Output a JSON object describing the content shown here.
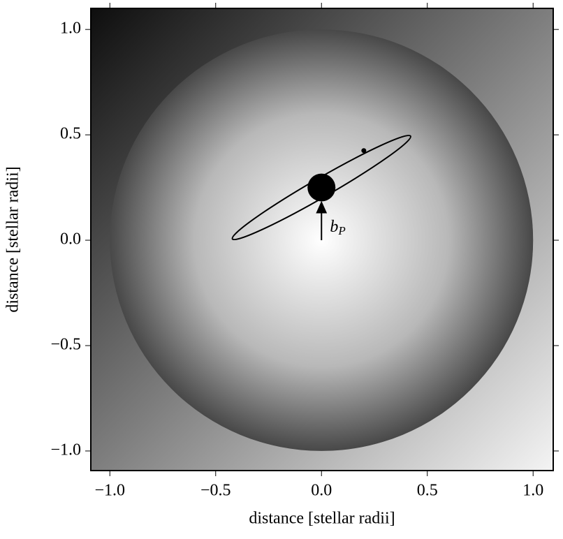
{
  "chart_data": {
    "type": "orbit",
    "xlabel": "distance [stellar radii]",
    "ylabel": "distance [stellar radii]",
    "xlim": [
      -1.09,
      1.095
    ],
    "ylim": [
      -1.093,
      1.1
    ],
    "xticks": [
      {
        "value": -1,
        "label": "−1.0"
      },
      {
        "value": -0.5,
        "label": "−0.5"
      },
      {
        "value": 0,
        "label": "0.0"
      },
      {
        "value": 0.5,
        "label": "0.5"
      },
      {
        "value": 1,
        "label": "1.0"
      }
    ],
    "yticks": [
      {
        "value": -1,
        "label": "−1.0"
      },
      {
        "value": -0.5,
        "label": "−0.5"
      },
      {
        "value": 0,
        "label": "0.0"
      },
      {
        "value": 0.5,
        "label": "0.5"
      },
      {
        "value": 1,
        "label": "1.0"
      }
    ],
    "star": {
      "x": 0,
      "y": 0,
      "radius": 1
    },
    "orbit": {
      "x": 0,
      "y": 0.25,
      "semi_major": 0.486,
      "semi_minor": 0.045,
      "angle": 30
    },
    "planet": {
      "x": 0,
      "y": 0.25,
      "radius": 0.066
    },
    "marker": {
      "x": 0.2,
      "y": 0.425
    },
    "arrow": {
      "x": 0,
      "y_from": 0,
      "y_to": 0.18
    },
    "annotation": {
      "x": 0.04,
      "y": 0.06,
      "base": "b",
      "subscript": "P"
    }
  }
}
